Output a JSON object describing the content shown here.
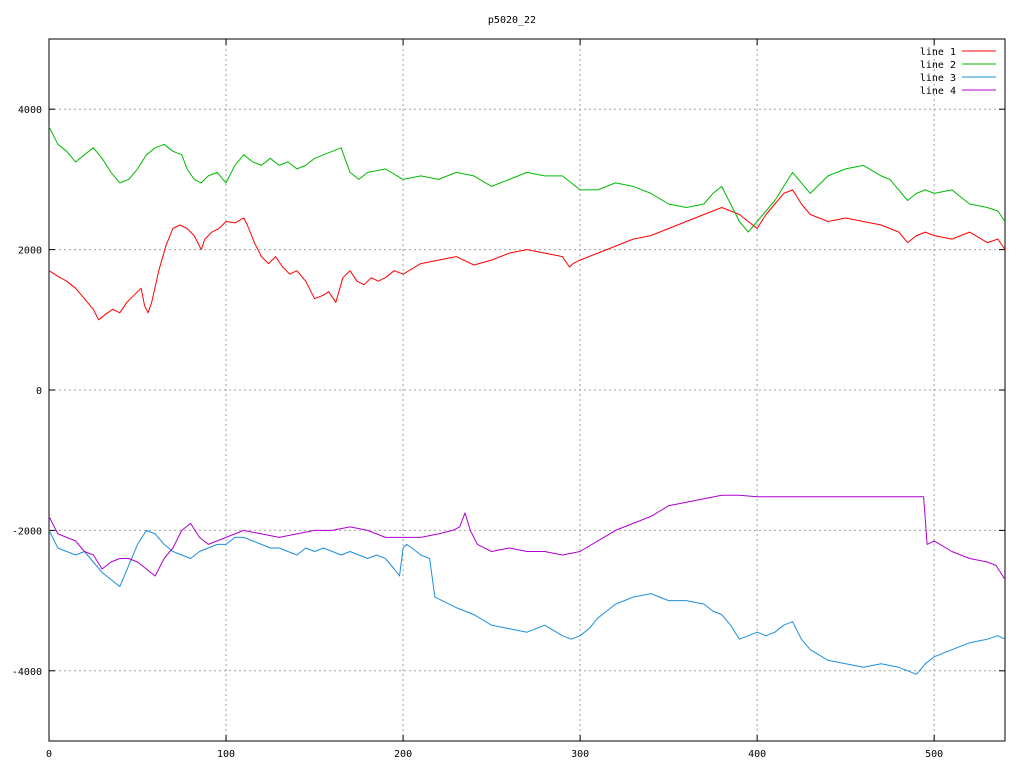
{
  "chart_data": {
    "type": "line",
    "title": "p5020_22",
    "xlabel": "",
    "ylabel": "",
    "xlim": [
      0,
      540
    ],
    "ylim": [
      -5000,
      5000
    ],
    "x_ticks": [
      0,
      100,
      200,
      300,
      400,
      500
    ],
    "y_ticks": [
      -4000,
      -2000,
      0,
      2000,
      4000
    ],
    "grid": true,
    "legend_position": "top-right",
    "series": [
      {
        "name": "line 1",
        "color": "#ff0000",
        "x": [
          0,
          5,
          10,
          15,
          20,
          25,
          28,
          32,
          36,
          40,
          44,
          48,
          52,
          54,
          56,
          58,
          62,
          66,
          70,
          74,
          78,
          82,
          86,
          88,
          92,
          96,
          100,
          105,
          110,
          112,
          116,
          120,
          124,
          128,
          132,
          136,
          140,
          145,
          150,
          155,
          158,
          162,
          166,
          170,
          174,
          178,
          182,
          186,
          190,
          195,
          200,
          210,
          220,
          230,
          240,
          250,
          260,
          270,
          280,
          290,
          294,
          296,
          300,
          310,
          320,
          330,
          340,
          350,
          360,
          370,
          380,
          385,
          390,
          395,
          400,
          405,
          410,
          415,
          420,
          425,
          430,
          440,
          450,
          460,
          470,
          480,
          485,
          490,
          495,
          500,
          510,
          520,
          530,
          536,
          540
        ],
        "y": [
          1700,
          1620,
          1550,
          1450,
          1300,
          1150,
          1000,
          1080,
          1150,
          1100,
          1250,
          1350,
          1450,
          1200,
          1100,
          1250,
          1700,
          2050,
          2300,
          2350,
          2300,
          2200,
          2000,
          2150,
          2250,
          2300,
          2400,
          2380,
          2450,
          2350,
          2100,
          1900,
          1800,
          1900,
          1750,
          1650,
          1700,
          1550,
          1300,
          1350,
          1400,
          1250,
          1600,
          1700,
          1550,
          1500,
          1600,
          1550,
          1600,
          1700,
          1650,
          1800,
          1850,
          1900,
          1780,
          1850,
          1950,
          2000,
          1950,
          1900,
          1750,
          1800,
          1850,
          1950,
          2050,
          2150,
          2200,
          2300,
          2400,
          2500,
          2600,
          2550,
          2500,
          2400,
          2300,
          2500,
          2650,
          2800,
          2850,
          2650,
          2500,
          2400,
          2450,
          2400,
          2350,
          2250,
          2100,
          2200,
          2250,
          2200,
          2150,
          2250,
          2100,
          2150,
          2000
        ]
      },
      {
        "name": "line 2",
        "color": "#00bb00",
        "x": [
          0,
          5,
          10,
          15,
          20,
          25,
          30,
          35,
          40,
          45,
          50,
          55,
          60,
          65,
          70,
          75,
          78,
          82,
          86,
          90,
          95,
          100,
          105,
          110,
          115,
          120,
          125,
          130,
          135,
          140,
          145,
          150,
          155,
          160,
          165,
          170,
          175,
          180,
          190,
          200,
          210,
          220,
          230,
          240,
          250,
          260,
          270,
          280,
          290,
          295,
          300,
          310,
          320,
          330,
          340,
          350,
          360,
          370,
          375,
          380,
          385,
          390,
          395,
          400,
          405,
          410,
          415,
          420,
          425,
          430,
          440,
          450,
          460,
          470,
          475,
          480,
          485,
          490,
          495,
          500,
          510,
          520,
          530,
          536,
          540
        ],
        "y": [
          3750,
          3500,
          3400,
          3250,
          3350,
          3450,
          3300,
          3100,
          2950,
          3000,
          3150,
          3350,
          3450,
          3500,
          3400,
          3350,
          3150,
          3000,
          2950,
          3050,
          3100,
          2950,
          3200,
          3350,
          3250,
          3200,
          3300,
          3200,
          3250,
          3150,
          3200,
          3300,
          3350,
          3400,
          3450,
          3100,
          3000,
          3100,
          3150,
          3000,
          3050,
          3000,
          3100,
          3050,
          2900,
          3000,
          3100,
          3050,
          3050,
          2950,
          2850,
          2850,
          2950,
          2900,
          2800,
          2650,
          2600,
          2650,
          2800,
          2900,
          2650,
          2400,
          2250,
          2400,
          2550,
          2700,
          2900,
          3100,
          2950,
          2800,
          3050,
          3150,
          3200,
          3050,
          3000,
          2850,
          2700,
          2800,
          2850,
          2800,
          2850,
          2650,
          2600,
          2550,
          2400
        ]
      },
      {
        "name": "line 3",
        "color": "#1e8fde",
        "x": [
          0,
          5,
          10,
          15,
          20,
          25,
          30,
          35,
          40,
          45,
          50,
          55,
          60,
          65,
          70,
          75,
          80,
          85,
          90,
          95,
          100,
          105,
          110,
          115,
          120,
          125,
          130,
          135,
          140,
          145,
          150,
          155,
          160,
          165,
          170,
          175,
          180,
          185,
          190,
          195,
          198,
          200,
          202,
          205,
          210,
          215,
          218,
          222,
          230,
          240,
          250,
          260,
          270,
          280,
          290,
          295,
          300,
          305,
          310,
          320,
          330,
          340,
          350,
          360,
          370,
          375,
          380,
          385,
          390,
          395,
          400,
          405,
          410,
          415,
          420,
          425,
          430,
          440,
          450,
          460,
          470,
          480,
          485,
          490,
          495,
          500,
          510,
          520,
          530,
          536,
          540
        ],
        "y": [
          -2000,
          -2250,
          -2300,
          -2350,
          -2300,
          -2450,
          -2600,
          -2700,
          -2800,
          -2500,
          -2200,
          -2000,
          -2050,
          -2200,
          -2300,
          -2350,
          -2400,
          -2300,
          -2250,
          -2200,
          -2200,
          -2100,
          -2100,
          -2150,
          -2200,
          -2250,
          -2250,
          -2300,
          -2350,
          -2250,
          -2300,
          -2250,
          -2300,
          -2350,
          -2300,
          -2350,
          -2400,
          -2350,
          -2400,
          -2550,
          -2650,
          -2250,
          -2200,
          -2250,
          -2350,
          -2400,
          -2950,
          -3000,
          -3100,
          -3200,
          -3350,
          -3400,
          -3450,
          -3350,
          -3500,
          -3550,
          -3500,
          -3400,
          -3250,
          -3050,
          -2950,
          -2900,
          -3000,
          -3000,
          -3050,
          -3150,
          -3200,
          -3350,
          -3550,
          -3500,
          -3450,
          -3500,
          -3450,
          -3350,
          -3300,
          -3550,
          -3700,
          -3850,
          -3900,
          -3950,
          -3900,
          -3950,
          -4000,
          -4050,
          -3900,
          -3800,
          -3700,
          -3600,
          -3550,
          -3500,
          -3550
        ]
      },
      {
        "name": "line 4",
        "color": "#b000d0",
        "x": [
          0,
          5,
          10,
          15,
          20,
          25,
          30,
          35,
          40,
          45,
          50,
          55,
          60,
          65,
          70,
          75,
          80,
          85,
          90,
          95,
          100,
          110,
          120,
          130,
          140,
          150,
          160,
          170,
          180,
          190,
          200,
          210,
          220,
          228,
          232,
          235,
          238,
          242,
          250,
          260,
          270,
          280,
          290,
          300,
          310,
          320,
          330,
          340,
          350,
          360,
          370,
          380,
          385,
          390,
          400,
          450,
          494,
          496,
          500,
          510,
          520,
          530,
          535,
          540
        ],
        "y": [
          -1800,
          -2050,
          -2100,
          -2150,
          -2300,
          -2350,
          -2550,
          -2450,
          -2400,
          -2400,
          -2450,
          -2550,
          -2650,
          -2400,
          -2250,
          -2000,
          -1900,
          -2100,
          -2200,
          -2150,
          -2100,
          -2000,
          -2050,
          -2100,
          -2050,
          -2000,
          -2000,
          -1950,
          -2000,
          -2100,
          -2100,
          -2100,
          -2050,
          -2000,
          -1950,
          -1750,
          -2000,
          -2200,
          -2300,
          -2250,
          -2300,
          -2300,
          -2350,
          -2300,
          -2150,
          -2000,
          -1900,
          -1800,
          -1650,
          -1600,
          -1550,
          -1500,
          -1500,
          -1500,
          -1520,
          -1520,
          -1520,
          -2200,
          -2150,
          -2300,
          -2400,
          -2450,
          -2500,
          -2700
        ]
      }
    ]
  }
}
